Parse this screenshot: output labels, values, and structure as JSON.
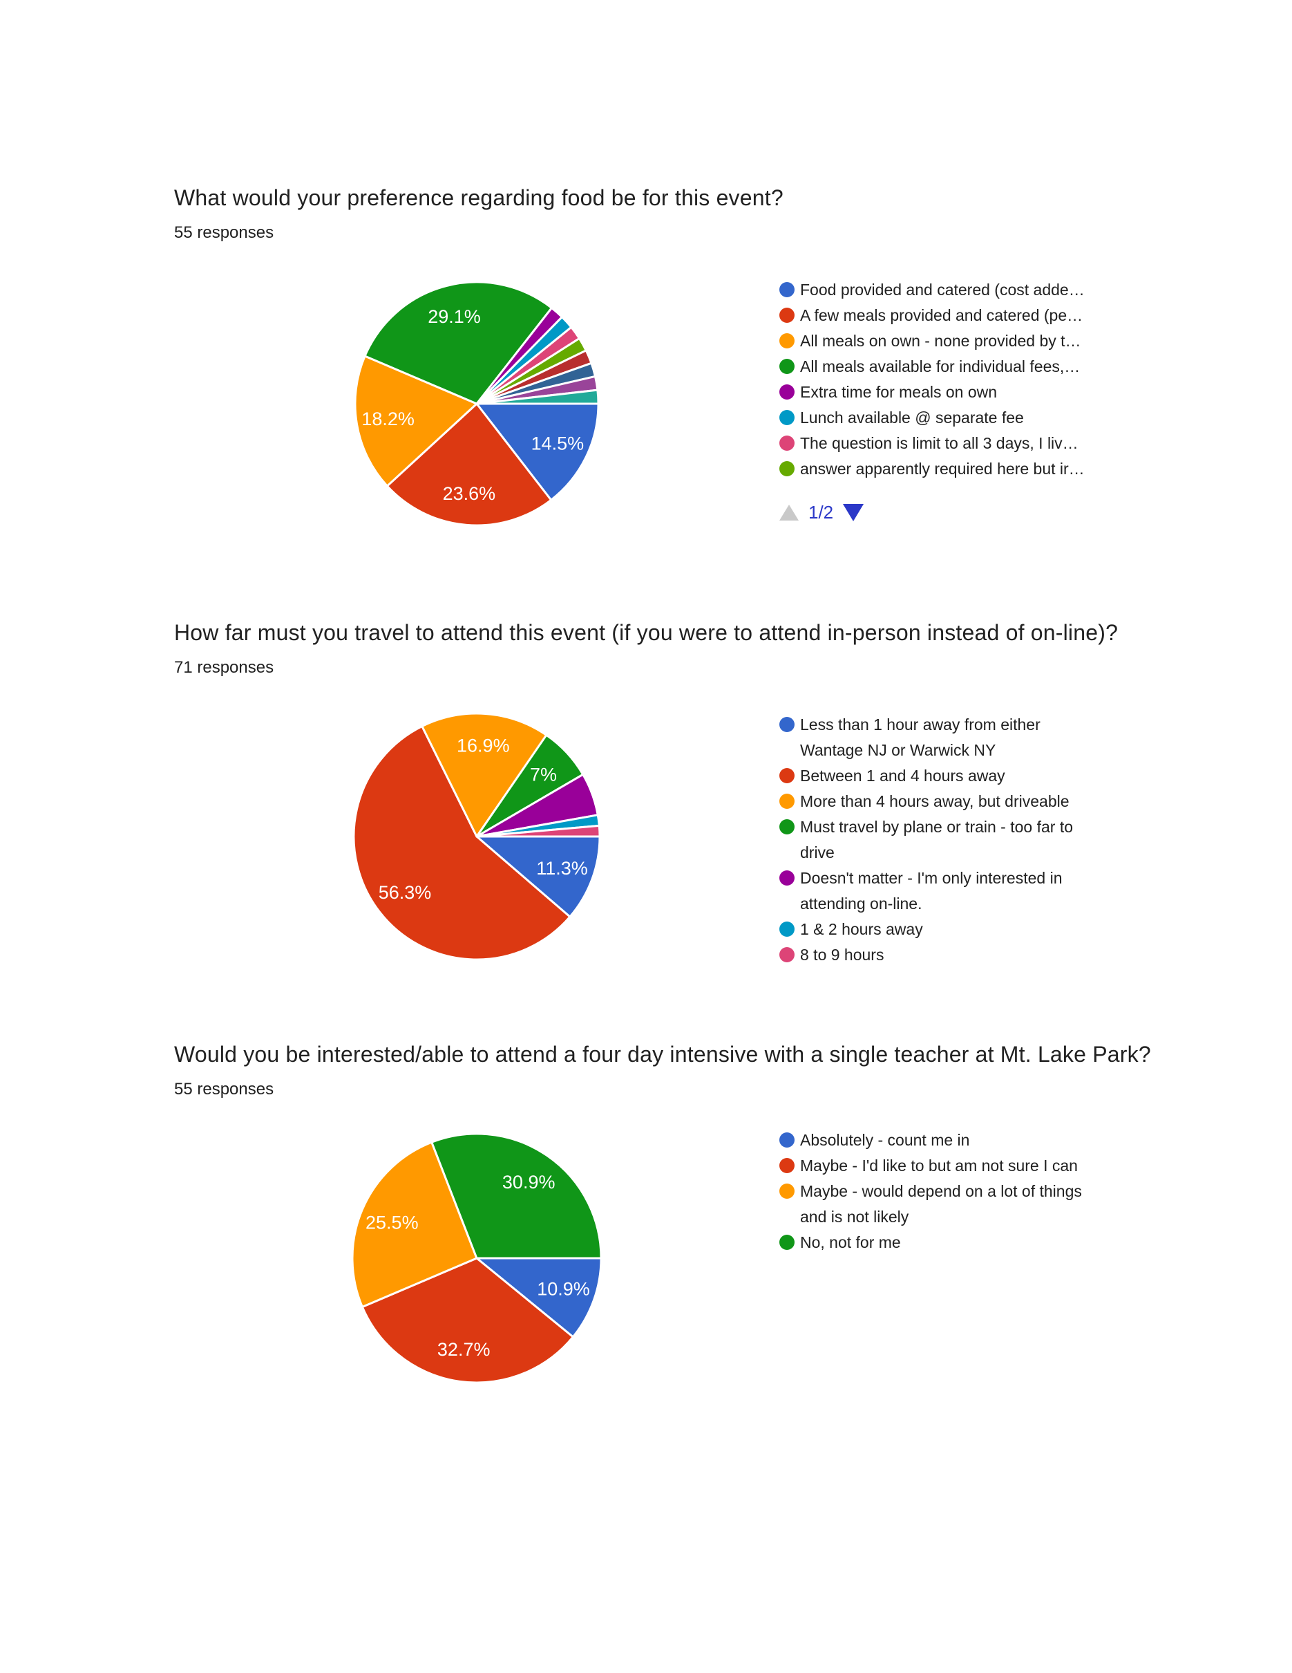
{
  "page": {
    "background": "#ffffff",
    "text_color": "#212121"
  },
  "pagination": {
    "label": "1/2",
    "up_arrow_color": "#c9c9c9",
    "down_arrow_color": "#2b38c8"
  },
  "chart_data": [
    {
      "type": "pie",
      "title": "What would your preference regarding food be for this event?",
      "responses_label": "55 responses",
      "legend_position": "right",
      "legend_pagination_label": "1/2",
      "radius": 176,
      "start_angle_deg": 0,
      "direction": "clockwise",
      "slices": [
        {
          "label": "Food provided and catered (cost adde…",
          "legend_lines": [
            "Food provided and catered (cost adde…"
          ],
          "pct": 14.5,
          "display": "14.5%",
          "color": "#3366CC"
        },
        {
          "label": "A few meals provided and catered (pe…",
          "legend_lines": [
            "A few meals provided and catered (pe…"
          ],
          "pct": 23.6,
          "display": "23.6%",
          "color": "#DC3912"
        },
        {
          "label": "All meals on own - none provided by t…",
          "legend_lines": [
            "All meals on own - none provided by t…"
          ],
          "pct": 18.2,
          "display": "18.2%",
          "color": "#FF9900"
        },
        {
          "label": "All meals available for individual fees,…",
          "legend_lines": [
            "All meals available for individual fees,…"
          ],
          "pct": 29.1,
          "display": "29.1%",
          "color": "#109618"
        },
        {
          "label": "Extra time for meals on own",
          "legend_lines": [
            "Extra time for meals on own"
          ],
          "pct": 1.8,
          "color": "#990099"
        },
        {
          "label": "Lunch available @ separate fee",
          "legend_lines": [
            "Lunch available @ separate fee"
          ],
          "pct": 1.8,
          "color": "#0099C6"
        },
        {
          "label": "The question is limit to all 3 days, I liv…",
          "legend_lines": [
            "The question is limit to all 3 days, I liv…"
          ],
          "pct": 1.8,
          "color": "#DD4477"
        },
        {
          "label": "answer apparently required here but ir…",
          "legend_lines": [
            "answer apparently required here but ir…"
          ],
          "pct": 1.8,
          "color": "#66AA00"
        },
        {
          "pct": 1.8,
          "color": "#B82E2E"
        },
        {
          "pct": 1.8,
          "color": "#316395"
        },
        {
          "pct": 1.8,
          "color": "#994499"
        },
        {
          "pct": 1.8,
          "color": "#22AA99"
        }
      ]
    },
    {
      "type": "pie",
      "title": "How far must you travel to attend this event (if you were to attend in-person instead of on-line)?",
      "responses_label": "71 responses",
      "legend_position": "right",
      "radius": 178,
      "start_angle_deg": 0,
      "direction": "clockwise",
      "slices": [
        {
          "label": "Less than 1 hour away from either Wantage NJ or Warwick NY",
          "legend_lines": [
            "Less than 1 hour away from either",
            "Wantage NJ or Warwick NY"
          ],
          "pct": 11.3,
          "display": "11.3%",
          "color": "#3366CC"
        },
        {
          "label": "Between 1 and 4 hours away",
          "legend_lines": [
            "Between 1 and 4 hours away"
          ],
          "pct": 56.3,
          "display": "56.3%",
          "color": "#DC3912"
        },
        {
          "label": "More than 4 hours away, but driveable",
          "legend_lines": [
            "More than 4 hours away, but driveable"
          ],
          "pct": 16.9,
          "display": "16.9%",
          "color": "#FF9900"
        },
        {
          "label": "Must travel by plane or train - too far to drive",
          "legend_lines": [
            "Must travel by plane or train - too far to",
            "drive"
          ],
          "pct": 7,
          "display": "7%",
          "color": "#109618"
        },
        {
          "label": "Doesn't matter - I'm only interested in attending on-line.",
          "legend_lines": [
            "Doesn't matter - I'm only interested in",
            "attending on-line."
          ],
          "pct": 5.6,
          "color": "#990099"
        },
        {
          "label": "1 & 2 hours away",
          "legend_lines": [
            "1 & 2 hours away"
          ],
          "pct": 1.4,
          "color": "#0099C6"
        },
        {
          "label": "8 to 9 hours",
          "legend_lines": [
            "8 to 9 hours"
          ],
          "pct": 1.4,
          "color": "#DD4477"
        }
      ]
    },
    {
      "type": "pie",
      "title": "Would you be interested/able to attend a four day intensive with a single teacher at Mt. Lake Park?",
      "responses_label": "55 responses",
      "legend_position": "right",
      "radius": 180,
      "start_angle_deg": 0,
      "direction": "clockwise",
      "slices": [
        {
          "label": "Absolutely - count me in",
          "legend_lines": [
            "Absolutely - count me in"
          ],
          "pct": 10.9,
          "display": "10.9%",
          "color": "#3366CC"
        },
        {
          "label": "Maybe - I'd like to but am not sure I can",
          "legend_lines": [
            "Maybe - I'd like to but am not sure I can"
          ],
          "pct": 32.7,
          "display": "32.7%",
          "color": "#DC3912"
        },
        {
          "label": "Maybe - would depend on a lot of things and is not likely",
          "legend_lines": [
            "Maybe - would depend on a lot of things",
            "and is not likely"
          ],
          "pct": 25.5,
          "display": "25.5%",
          "color": "#FF9900"
        },
        {
          "label": "No, not for me",
          "legend_lines": [
            "No, not for me"
          ],
          "pct": 30.9,
          "display": "30.9%",
          "color": "#109618"
        }
      ]
    }
  ]
}
